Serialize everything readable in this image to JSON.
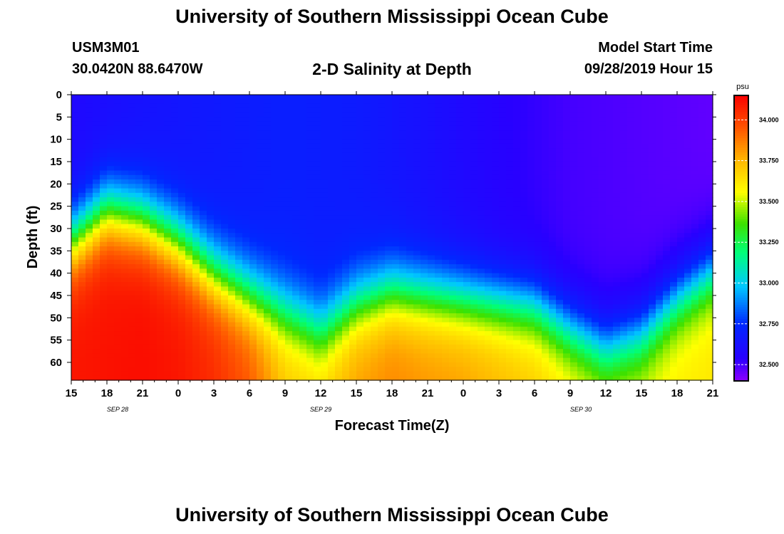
{
  "header": {
    "title_top": "University of Southern Mississippi Ocean Cube",
    "title_bottom": "University of Southern Mississippi Ocean Cube",
    "station_id": "USM3M01",
    "station_coords": "30.0420N 88.6470W",
    "plot_title": "2-D Salinity at Depth",
    "model_start_label": "Model Start Time",
    "model_start_value": "09/28/2019 Hour 15"
  },
  "chart_data": {
    "type": "heatmap",
    "title": "2-D Salinity at Depth",
    "xlabel": "Forecast Time(Z)",
    "ylabel": "Depth (ft)",
    "x_ticks": [
      "15",
      "18",
      "21",
      "0",
      "3",
      "6",
      "9",
      "12",
      "15",
      "18",
      "21",
      "0",
      "3",
      "6",
      "9",
      "12",
      "15",
      "18",
      "21"
    ],
    "date_labels": [
      {
        "label": "SEP 28",
        "tick_index": 1.3
      },
      {
        "label": "SEP 29",
        "tick_index": 7.0
      },
      {
        "label": "SEP 30",
        "tick_index": 14.3
      }
    ],
    "x_range_hours": [
      0,
      54
    ],
    "y_ticks": [
      0,
      5,
      10,
      15,
      20,
      25,
      30,
      35,
      40,
      45,
      50,
      55,
      60
    ],
    "ylim": [
      0,
      64
    ],
    "colorbar": {
      "unit": "psu",
      "min": 32.4,
      "max": 34.15,
      "ticks": [
        "32.500",
        "32.750",
        "33.000",
        "33.250",
        "33.500",
        "33.750",
        "34.000"
      ],
      "tick_values": [
        32.5,
        32.75,
        33.0,
        33.25,
        33.5,
        33.75,
        34.0
      ]
    },
    "thermocline": {
      "hours": [
        0,
        3,
        6,
        9,
        12,
        15,
        18,
        21,
        24,
        27,
        30,
        33,
        36,
        39,
        42,
        45,
        48,
        51,
        54
      ],
      "depth_ft": [
        33,
        26,
        28,
        33,
        40,
        45,
        49,
        53,
        47,
        44,
        45,
        46,
        47,
        48,
        53,
        57,
        54,
        46,
        40
      ],
      "half_width_ft": 9
    },
    "surface_salinity": {
      "hours": [
        0,
        6,
        12,
        18,
        24,
        30,
        36,
        42,
        48,
        54
      ],
      "psu": [
        32.58,
        32.63,
        32.67,
        32.7,
        32.68,
        32.62,
        32.55,
        32.5,
        32.48,
        32.46
      ]
    },
    "bottom_salinity": {
      "hours": [
        0,
        6,
        9,
        12,
        15,
        18,
        21,
        24,
        27,
        30,
        33,
        36,
        39,
        42,
        45,
        48,
        51,
        54
      ],
      "psu": [
        34.1,
        34.12,
        34.1,
        34.05,
        33.95,
        33.72,
        33.68,
        33.8,
        33.85,
        33.82,
        33.8,
        33.75,
        33.7,
        33.62,
        33.55,
        33.55,
        33.6,
        33.62
      ]
    }
  }
}
